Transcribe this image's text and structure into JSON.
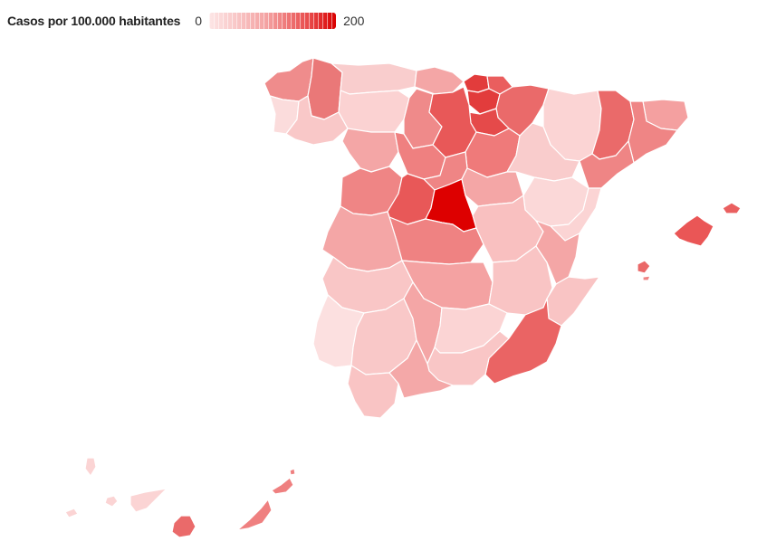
{
  "legend": {
    "title": "Casos por 100.000 habitantes",
    "min_label": "0",
    "max_label": "200",
    "color_low": "#fde6e6",
    "color_high": "#d90000"
  },
  "map": {
    "color_scale": [
      "#fce0e0",
      "#f9c4c4",
      "#f4a3a3",
      "#ef8282",
      "#ea6060",
      "#e23c3c",
      "#dd0000"
    ]
  }
}
